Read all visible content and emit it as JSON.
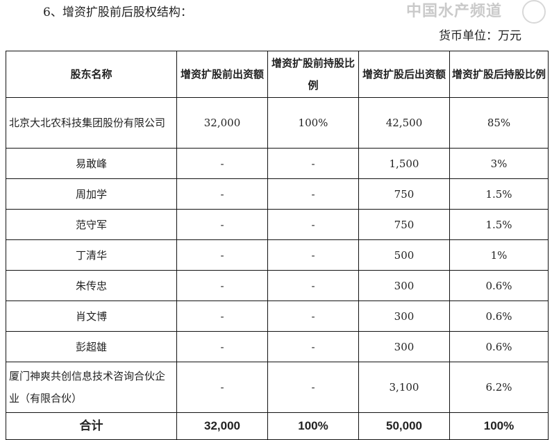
{
  "title": "6、增资扩股前后股权结构：",
  "unit": "货币单位：万元",
  "headers": [
    "股东名称",
    "增资扩股前出资额",
    "增资扩股前持股比例",
    "增资扩股后出资额",
    "增资扩股后持股比例"
  ],
  "rows": [
    [
      "北京大北农科技集团股份有限公司",
      "32,000",
      "100%",
      "42,500",
      "85%"
    ],
    [
      "易敢峰",
      "-",
      "-",
      "1,500",
      "3%"
    ],
    [
      "周加学",
      "-",
      "-",
      "750",
      "1.5%"
    ],
    [
      "范守军",
      "-",
      "-",
      "750",
      "1.5%"
    ],
    [
      "丁清华",
      "-",
      "-",
      "500",
      "1%"
    ],
    [
      "朱传忠",
      "-",
      "-",
      "300",
      "0.6%"
    ],
    [
      "肖文博",
      "-",
      "-",
      "300",
      "0.6%"
    ],
    [
      "彭超雄",
      "-",
      "-",
      "300",
      "0.6%"
    ],
    [
      "厦门神爽共创信息技术咨询合伙企业（有限合伙）",
      "-",
      "-",
      "3,100",
      "6.2%"
    ]
  ],
  "total": [
    "合计",
    "32,000",
    "100%",
    "50,000",
    "100%"
  ],
  "watermark": "中国水产频道"
}
